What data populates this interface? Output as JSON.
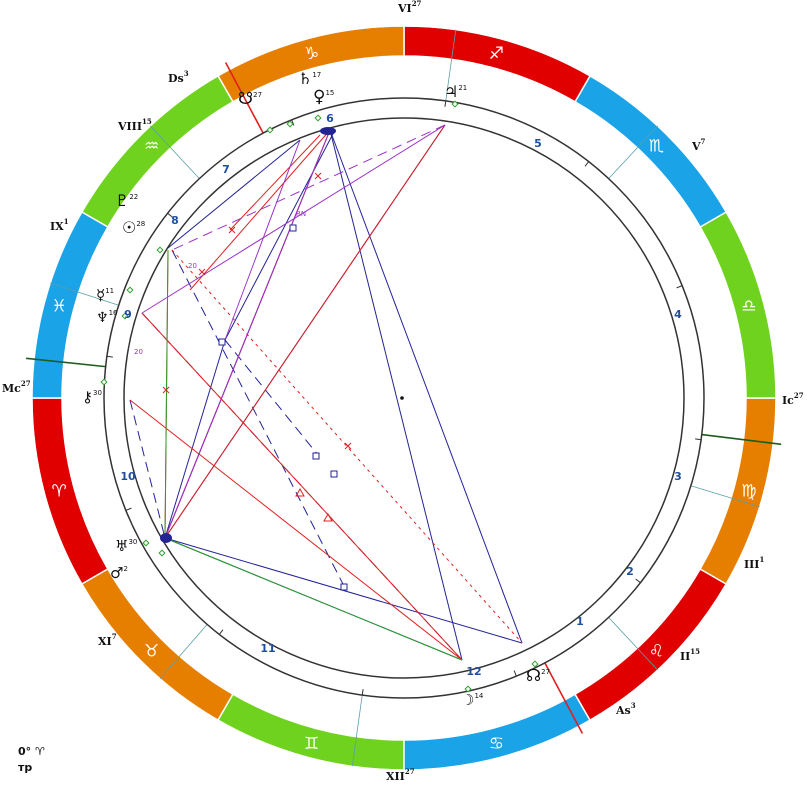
{
  "colors": {
    "fire": "#e00000",
    "earth": "#e67e00",
    "air": "#6fd21f",
    "water": "#1aa3e6",
    "aspect_red": "#e02020",
    "aspect_blue": "#232394",
    "aspect_purple": "#9b32c8",
    "aspect_green": "#2d9e2d",
    "cusp_teal": "#5aa0a8",
    "axis_dark_green": "#1d5c1d",
    "house_number": "#1f4e9e"
  },
  "zodiac_ring": [
    {
      "sign": "aries",
      "glyph": "♈",
      "element": "fire"
    },
    {
      "sign": "taurus",
      "glyph": "♉",
      "element": "earth"
    },
    {
      "sign": "gemini",
      "glyph": "♊",
      "element": "air"
    },
    {
      "sign": "cancer",
      "glyph": "♋",
      "element": "water"
    },
    {
      "sign": "leo",
      "glyph": "♌",
      "element": "fire"
    },
    {
      "sign": "virgo",
      "glyph": "♍",
      "element": "earth"
    },
    {
      "sign": "libra",
      "glyph": "♎",
      "element": "air"
    },
    {
      "sign": "scorpio",
      "glyph": "♏",
      "element": "water"
    },
    {
      "sign": "sagittarius",
      "glyph": "♐",
      "element": "fire"
    },
    {
      "sign": "capricorn",
      "glyph": "♑",
      "element": "earth"
    },
    {
      "sign": "aquarius",
      "glyph": "♒",
      "element": "air"
    },
    {
      "sign": "pisces",
      "glyph": "♓",
      "element": "water"
    }
  ],
  "cusps": [
    {
      "label": "As",
      "deg": "3"
    },
    {
      "label": "II",
      "deg": "15"
    },
    {
      "label": "III",
      "deg": "1"
    },
    {
      "label": "Ic",
      "deg": "27"
    },
    {
      "label": "V",
      "deg": "7"
    },
    {
      "label": "VI",
      "deg": "27"
    },
    {
      "label": "Ds",
      "deg": "3"
    },
    {
      "label": "VIII",
      "deg": "15"
    },
    {
      "label": "IX",
      "deg": "1"
    },
    {
      "label": "Mc",
      "deg": "27"
    },
    {
      "label": "XI",
      "deg": "7"
    },
    {
      "label": "XII",
      "deg": "27"
    }
  ],
  "house_numbers": [
    "1",
    "2",
    "3",
    "4",
    "5",
    "6",
    "7",
    "8",
    "9",
    "10",
    "11",
    "12"
  ],
  "planets": [
    {
      "name": "sun",
      "glyph": "☉",
      "deg": "28"
    },
    {
      "name": "moon",
      "glyph": "☽",
      "deg": "14"
    },
    {
      "name": "mercury",
      "glyph": "☿",
      "deg": "11"
    },
    {
      "name": "venus",
      "glyph": "♀",
      "deg": "15"
    },
    {
      "name": "mars",
      "glyph": "♂",
      "deg": "2"
    },
    {
      "name": "jupiter",
      "glyph": "♃",
      "deg": "21"
    },
    {
      "name": "saturn",
      "glyph": "♄",
      "deg": "17"
    },
    {
      "name": "uranus",
      "glyph": "♅",
      "deg": "30"
    },
    {
      "name": "neptune",
      "glyph": "♆",
      "deg": "16"
    },
    {
      "name": "pluto",
      "glyph": "♇",
      "deg": "22"
    },
    {
      "name": "north-node",
      "glyph": "☊",
      "deg": "27"
    },
    {
      "name": "south-node",
      "glyph": "☋",
      "deg": "27"
    },
    {
      "name": "chiron",
      "glyph": "⚷",
      "deg": "30"
    }
  ],
  "aspect_inner_labels": [
    "20",
    "20",
    "RN"
  ],
  "footer": {
    "line1": "0° ♈",
    "line2": "тр"
  }
}
